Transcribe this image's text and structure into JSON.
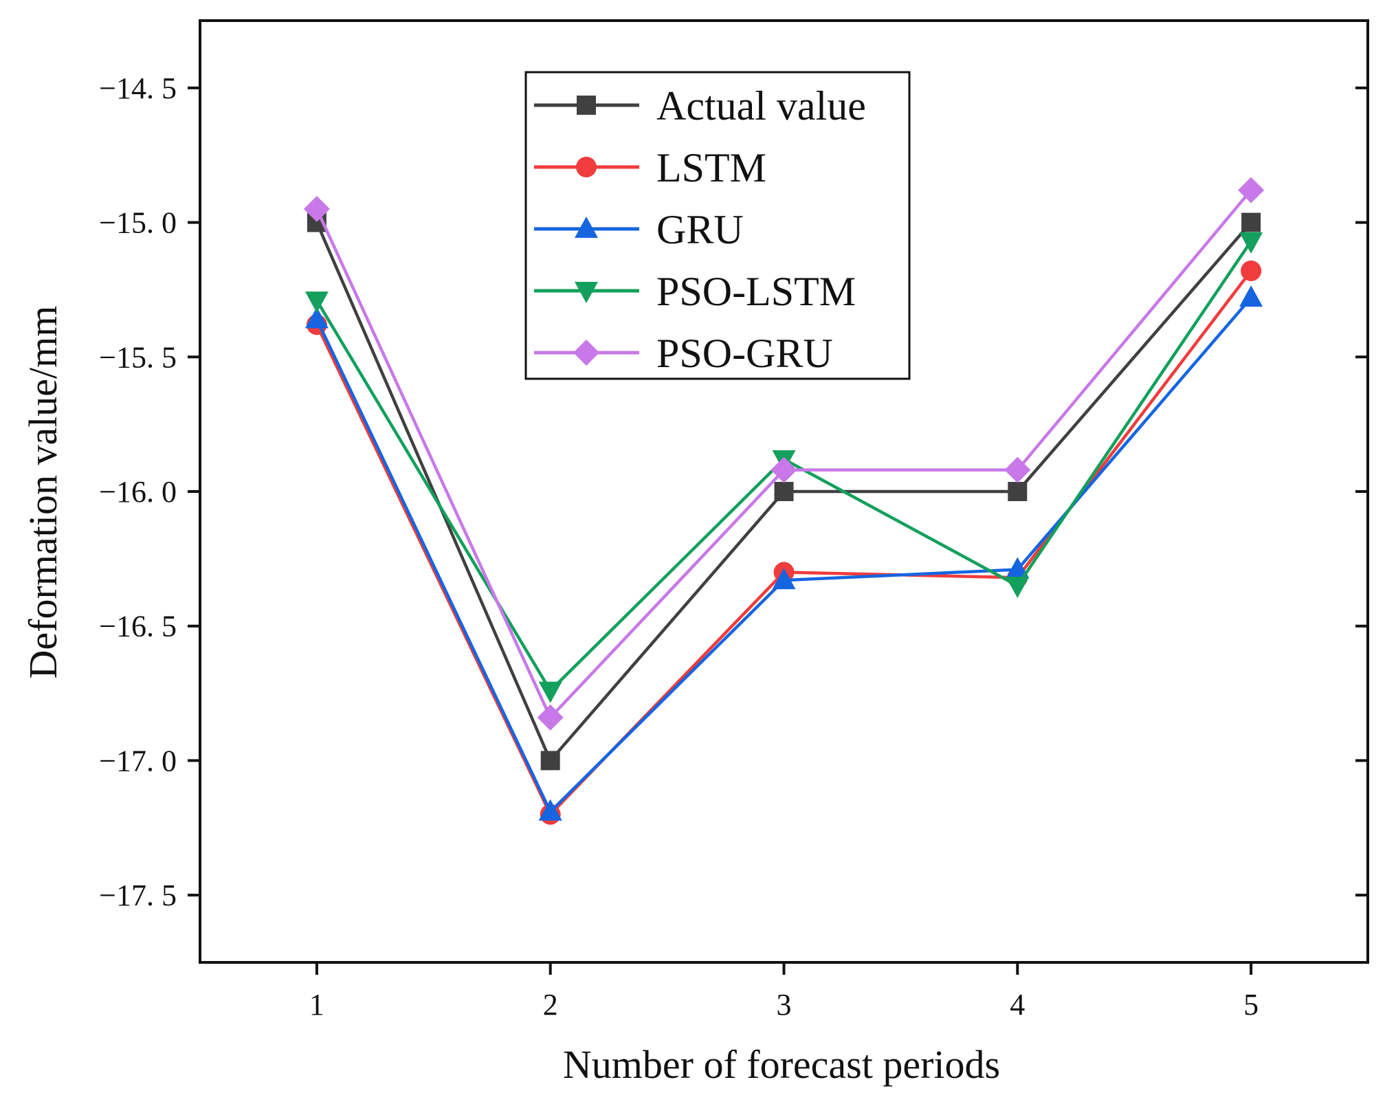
{
  "chart_data": {
    "type": "line",
    "xlabel": "Number of forecast periods",
    "ylabel": "Deformation value/mm",
    "categories": [
      1,
      2,
      3,
      4,
      5
    ],
    "x_tick_labels": [
      "1",
      "2",
      "3",
      "4",
      "5"
    ],
    "xlim": [
      0.5,
      5.5
    ],
    "ylim": [
      -17.75,
      -14.25
    ],
    "y_ticks": [
      -14.5,
      -15.0,
      -15.5,
      -16.0,
      -16.5,
      -17.0,
      -17.5
    ],
    "y_tick_labels": [
      "−14. 5",
      "−15. 0",
      "−15. 5",
      "−16. 0",
      "−16. 5",
      "−17. 0",
      "−17. 5"
    ],
    "grid": false,
    "legend_position": "top-center",
    "series": [
      {
        "name": "Actual value",
        "color": "#404040",
        "marker": "square",
        "values": [
          -15.0,
          -17.0,
          -16.0,
          -16.0,
          -15.0
        ]
      },
      {
        "name": "LSTM",
        "color": "#f03c3c",
        "marker": "circle",
        "values": [
          -15.38,
          -17.2,
          -16.3,
          -16.32,
          -15.18
        ]
      },
      {
        "name": "GRU",
        "color": "#1565e0",
        "marker": "triangle-up",
        "values": [
          -15.36,
          -17.19,
          -16.33,
          -16.29,
          -15.28
        ]
      },
      {
        "name": "PSO-LSTM",
        "color": "#12a05c",
        "marker": "triangle-down",
        "values": [
          -15.29,
          -16.74,
          -15.88,
          -16.35,
          -15.07
        ]
      },
      {
        "name": "PSO-GRU",
        "color": "#c878e8",
        "marker": "diamond",
        "values": [
          -14.95,
          -16.84,
          -15.92,
          -15.92,
          -14.88
        ]
      }
    ]
  }
}
